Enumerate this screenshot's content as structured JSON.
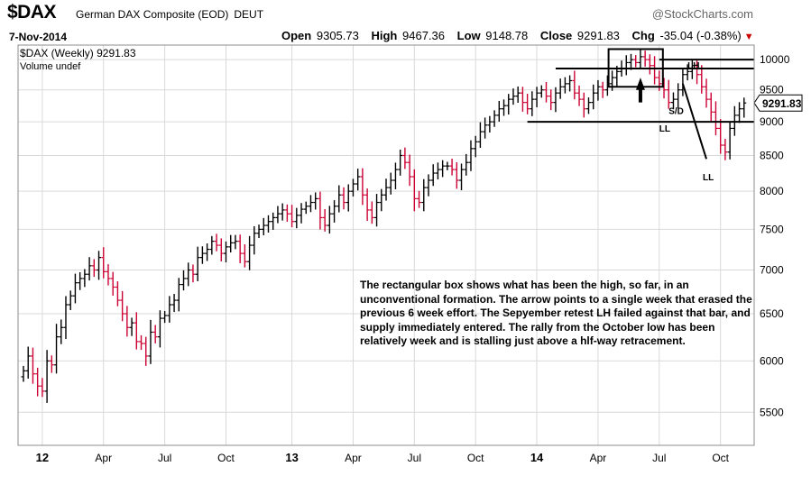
{
  "header": {
    "symbol": "$DAX",
    "name": "German DAX Composite (EOD)",
    "exchange": "DEUT",
    "brand": "@StockCharts.com",
    "date": "7-Nov-2014",
    "open_label": "Open",
    "open": "9305.73",
    "high_label": "High",
    "high": "9467.36",
    "low_label": "Low",
    "low": "9148.78",
    "close_label": "Close",
    "close": "9291.83",
    "chg_label": "Chg",
    "chg": "-35.04 (-0.38%)"
  },
  "legend": {
    "series_label": "$DAX (Weekly) 9291.83",
    "volume_label": "Volume undef"
  },
  "annotation_text": "The rectangular box shows what has been the high, so far, in an unconventional formation.  The arrow points to a single week that erased the previous 6 week effort.  The Sepyember retest LH failed against that bar, and supply immediately entered. The rally from the October low has been relatively week and is stalling just above a hlf-way retracement.",
  "colors": {
    "up": "#000000",
    "down": "#cc0033",
    "grid": "#d9d9d9",
    "frame": "#8c8c8c",
    "brand": "#666666"
  },
  "chart_data": {
    "type": "ohlc",
    "period": "weekly",
    "title": "$DAX German DAX Composite (EOD)",
    "yscale": "log",
    "ylim": [
      5200,
      10250
    ],
    "y_ticks": [
      5500,
      6000,
      6500,
      7000,
      7500,
      8000,
      8500,
      9000,
      9500,
      10000
    ],
    "x_ticks": [
      "12",
      "Apr",
      "Jul",
      "Oct",
      "13",
      "Apr",
      "Jul",
      "Oct",
      "14",
      "Apr",
      "Jul",
      "Oct"
    ],
    "x_tick_weeks": [
      4,
      17,
      30,
      43,
      57,
      70,
      83,
      96,
      109,
      122,
      135,
      148
    ],
    "last_value": "9291.83",
    "closes": [
      5900,
      6050,
      5870,
      5750,
      5700,
      6000,
      5960,
      6250,
      6350,
      6600,
      6700,
      6850,
      6900,
      6950,
      7050,
      7000,
      7150,
      6980,
      6900,
      6800,
      6650,
      6500,
      6350,
      6400,
      6200,
      6180,
      6050,
      6300,
      6250,
      6450,
      6480,
      6600,
      6650,
      6830,
      6900,
      7000,
      6950,
      7150,
      7200,
      7250,
      7350,
      7300,
      7200,
      7280,
      7330,
      7350,
      7200,
      7100,
      7300,
      7450,
      7500,
      7550,
      7600,
      7650,
      7700,
      7750,
      7700,
      7600,
      7680,
      7760,
      7800,
      7850,
      7900,
      7650,
      7550,
      7700,
      7800,
      7950,
      7850,
      8000,
      8100,
      8200,
      7950,
      7750,
      7650,
      7850,
      7950,
      8050,
      8150,
      8300,
      8500,
      8400,
      8200,
      7900,
      7850,
      8050,
      8150,
      8250,
      8300,
      8350,
      8350,
      8300,
      8150,
      8300,
      8400,
      8600,
      8700,
      8850,
      8950,
      9000,
      9100,
      9200,
      9250,
      9350,
      9400,
      9450,
      9300,
      9200,
      9350,
      9450,
      9500,
      9400,
      9300,
      9450,
      9550,
      9600,
      9650,
      9450,
      9350,
      9200,
      9300,
      9450,
      9550,
      9500,
      9600,
      9700,
      9800,
      9850,
      9950,
      10000,
      9950,
      10050,
      10000,
      9900,
      9700,
      9600,
      9500,
      9300,
      9350,
      9500,
      9750,
      9800,
      9900,
      9750,
      9550,
      9350,
      9150,
      8900,
      8650,
      8550,
      8900,
      9100,
      9200,
      9291.83
    ],
    "annotations": [
      {
        "label": "LH"
      },
      {
        "label": "LL"
      },
      {
        "label": "LL"
      },
      {
        "label": "S/D"
      }
    ],
    "horizontal_lines": [
      10000,
      9850,
      9000
    ]
  }
}
